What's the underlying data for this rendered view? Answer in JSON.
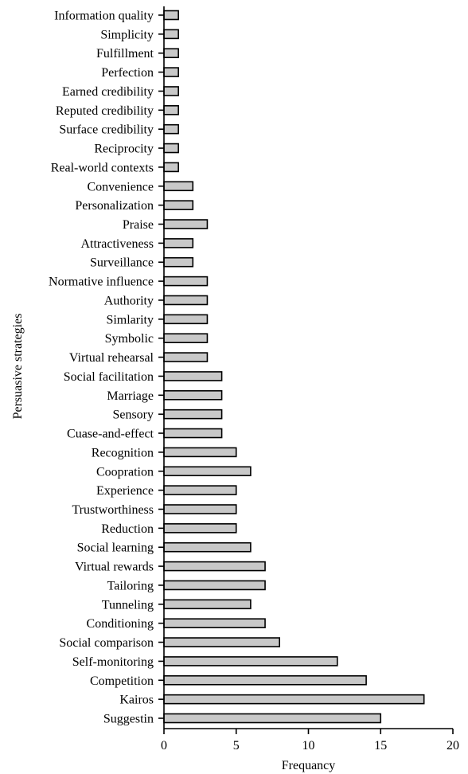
{
  "chart_data": {
    "type": "bar",
    "orientation": "horizontal",
    "xlabel": "Frequancy",
    "ylabel": "Persuasive strategies",
    "xlim": [
      0,
      20
    ],
    "xticks": [
      0,
      5,
      10,
      15,
      20
    ],
    "grid": false,
    "bar_color": "#c8c8c8",
    "categories": [
      "Information quality",
      "Simplicity",
      "Fulfillment",
      "Perfection",
      "Earned credibility",
      "Reputed credibility",
      "Surface credibility",
      "Reciprocity",
      "Real-world contexts",
      "Convenience",
      "Personalization",
      "Praise",
      "Attractiveness",
      "Surveillance",
      "Normative influence",
      "Authority",
      "Simlarity",
      "Symbolic",
      "Virtual rehearsal",
      "Social facilitation",
      "Marriage",
      "Sensory",
      "Cuase-and-effect",
      "Recognition",
      "Coopration",
      "Experience",
      "Trustworthiness",
      "Reduction",
      "Social learning",
      "Virtual rewards",
      "Tailoring",
      "Tunneling",
      "Conditioning",
      "Social comparison",
      "Self-monitoring",
      "Competition",
      "Kairos",
      "Suggestin"
    ],
    "values": [
      1,
      1,
      1,
      1,
      1,
      1,
      1,
      1,
      1,
      2,
      2,
      3,
      2,
      2,
      3,
      3,
      3,
      3,
      3,
      4,
      4,
      4,
      4,
      5,
      6,
      5,
      5,
      5,
      6,
      7,
      7,
      6,
      7,
      8,
      12,
      14,
      18,
      15
    ]
  }
}
